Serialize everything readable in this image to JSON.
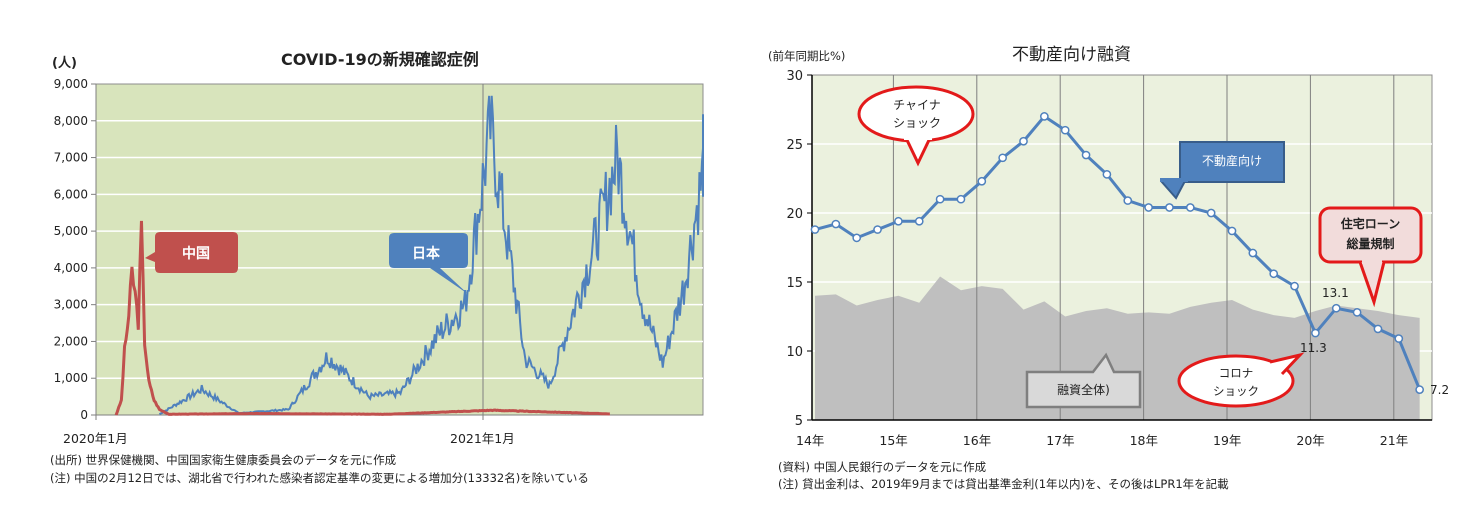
{
  "left_chart": {
    "unit": "(人)",
    "title": "COVID-19の新規確認症例",
    "x_ticks": [
      "2020年1月",
      "2021年1月"
    ],
    "y_ticks": [
      "9,000",
      "8,000",
      "7,000",
      "6,000",
      "5,000",
      "4,000",
      "3,000",
      "2,000",
      "1,000",
      "0"
    ],
    "callouts": {
      "china": "中国",
      "japan": "日本"
    },
    "notes": [
      "(出所) 世界保健機関、中国国家衛生健康委員会のデータを元に作成",
      "(注) 中国の2月12日では、湖北省で行われた感染者認定基準の変更による増加分(13332名)を除いている"
    ],
    "colors": {
      "plot_bg": "#d8e4bc",
      "china": "#c0504d",
      "japan": "#4f81bd"
    }
  },
  "right_chart": {
    "unit": "(前年同期比%)",
    "title": "不動産向け融資",
    "x_ticks": [
      "14年",
      "15年",
      "16年",
      "17年",
      "18年",
      "19年",
      "20年",
      "21年"
    ],
    "y_ticks": [
      "30",
      "25",
      "20",
      "15",
      "10",
      "5"
    ],
    "callouts": {
      "china_shock": [
        "チャイナ",
        "ショック"
      ],
      "real_estate": "不動産向け",
      "housing_loan": [
        "住宅ローン",
        "総量規制"
      ],
      "covid_shock": [
        "コロナ",
        "ショック"
      ],
      "total_loans": "融資全体)"
    },
    "data_labels": {
      "low": "11.3",
      "high": "13.1",
      "last": "7.2"
    },
    "notes": [
      "(資料) 中国人民銀行のデータを元に作成",
      "(注) 貸出金利は、2019年9月までは貸出基準金利(1年以内)を、その後はLPR1年を記載"
    ],
    "colors": {
      "plot_bg": "#ebf1de",
      "line": "#4f81bd",
      "area": "#bfbfbf",
      "callout_red": "#e31a1a"
    }
  },
  "chart_data": [
    {
      "type": "line",
      "title": "COVID-19の新規確認症例",
      "xlabel": "",
      "ylabel": "(人)",
      "ylim": [
        0,
        9000
      ],
      "x_range": [
        "2020年1月",
        "2021年5月"
      ],
      "grid": true,
      "series": [
        {
          "name": "中国",
          "description": "daily new cases; peak ~3,900 late Jan 2020, spike ~5,100 mid-Feb 2020, near zero afterward (~100 in Jan 2021)",
          "x": [
            "2020-01-20",
            "2020-01-25",
            "2020-01-28",
            "2020-02-01",
            "2020-02-04",
            "2020-02-07",
            "2020-02-10",
            "2020-02-13",
            "2020-02-16",
            "2020-02-20",
            "2020-02-25",
            "2020-03-01",
            "2020-03-10",
            "2020-06-01",
            "2020-10-01",
            "2021-01-10",
            "2021-05-01"
          ],
          "values": [
            0,
            400,
            1750,
            2700,
            3900,
            3300,
            2500,
            5100,
            2000,
            900,
            400,
            150,
            20,
            40,
            20,
            130,
            30
          ]
        },
        {
          "name": "日本",
          "description": "daily new cases; waves: ~700 Apr 2020, ~1,600-2,000 Aug 2020, ~7,800 Jan 2021, ~7,000 May 2021, ~7,300 end",
          "x": [
            "2020-03-01",
            "2020-04-10",
            "2020-05-15",
            "2020-07-01",
            "2020-08-07",
            "2020-09-15",
            "2020-10-15",
            "2020-11-20",
            "2020-12-15",
            "2021-01-08",
            "2021-02-10",
            "2021-03-05",
            "2021-04-15",
            "2021-05-08",
            "2021-06-01",
            "2021-06-20",
            "2021-07-10",
            "2021-08-01"
          ],
          "values": [
            20,
            700,
            50,
            150,
            1600,
            500,
            600,
            2200,
            3000,
            7800,
            1500,
            800,
            4500,
            7000,
            3000,
            1400,
            3500,
            7300
          ]
        }
      ]
    },
    {
      "type": "line",
      "title": "不動産向け融資",
      "xlabel": "",
      "ylabel": "(前年同期比%)",
      "ylim": [
        5,
        30
      ],
      "grid": true,
      "categories": [
        "14Q1",
        "14Q2",
        "14Q3",
        "14Q4",
        "15Q1",
        "15Q2",
        "15Q3",
        "15Q4",
        "16Q1",
        "16Q2",
        "16Q3",
        "16Q4",
        "17Q1",
        "17Q2",
        "17Q3",
        "17Q4",
        "18Q1",
        "18Q2",
        "18Q3",
        "18Q4",
        "19Q1",
        "19Q2",
        "19Q3",
        "19Q4",
        "20Q1",
        "20Q2",
        "20Q3",
        "20Q4",
        "21Q1",
        "21Q2"
      ],
      "series": [
        {
          "name": "不動産向け",
          "style": "line-with-markers",
          "values": [
            18.8,
            19.2,
            18.2,
            18.8,
            19.4,
            19.4,
            21.0,
            21.0,
            22.3,
            24.0,
            25.2,
            27.0,
            26.0,
            24.2,
            22.8,
            20.9,
            20.4,
            20.4,
            20.4,
            20.0,
            18.7,
            17.1,
            15.6,
            14.7,
            11.3,
            13.1,
            12.8,
            11.6,
            10.9,
            7.2
          ]
        },
        {
          "name": "融資全体",
          "style": "area",
          "values": [
            14.0,
            14.1,
            13.3,
            13.7,
            14.0,
            13.5,
            15.4,
            14.4,
            14.7,
            14.5,
            13.0,
            13.6,
            12.5,
            12.9,
            13.1,
            12.7,
            12.8,
            12.7,
            13.2,
            13.5,
            13.7,
            13.0,
            12.6,
            12.4,
            12.9,
            13.3,
            13.1,
            12.9,
            12.6,
            12.4
          ]
        }
      ],
      "annotations": [
        "チャイナショック",
        "コロナショック",
        "住宅ローン総量規制",
        "11.3",
        "13.1",
        "7.2"
      ]
    }
  ]
}
